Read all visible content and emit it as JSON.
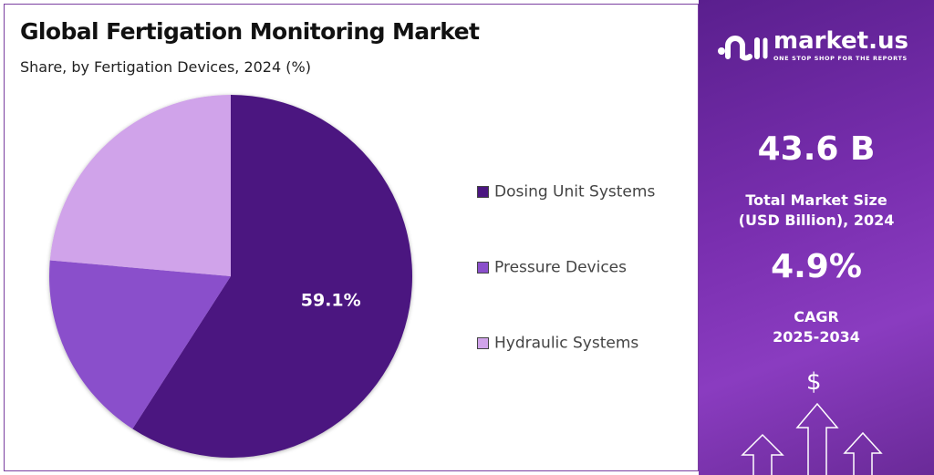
{
  "chart_data": {
    "type": "pie",
    "title": "Global Fertigation Monitoring Market",
    "subtitle": "Share, by Fertigation Devices, 2024 (%)",
    "categories": [
      "Dosing Unit Systems",
      "Pressure Devices",
      "Hydraulic Systems"
    ],
    "values": [
      59.1,
      17.3,
      23.6
    ],
    "data_labels": [
      "59.1%",
      "",
      ""
    ],
    "colors": [
      "#4b1680",
      "#8a4fcb",
      "#d0a3ea"
    ],
    "legend_placement": "right"
  },
  "sidebar": {
    "brand": "market.us",
    "tagline": "ONE STOP SHOP FOR THE REPORTS",
    "market_size_value": "43.6 B",
    "market_size_label_1": "Total Market Size",
    "market_size_label_2": "(USD Billion), 2024",
    "cagr_value": "4.9%",
    "cagr_label_1": "CAGR",
    "cagr_label_2": "2025-2034",
    "dollar_symbol": "$"
  }
}
